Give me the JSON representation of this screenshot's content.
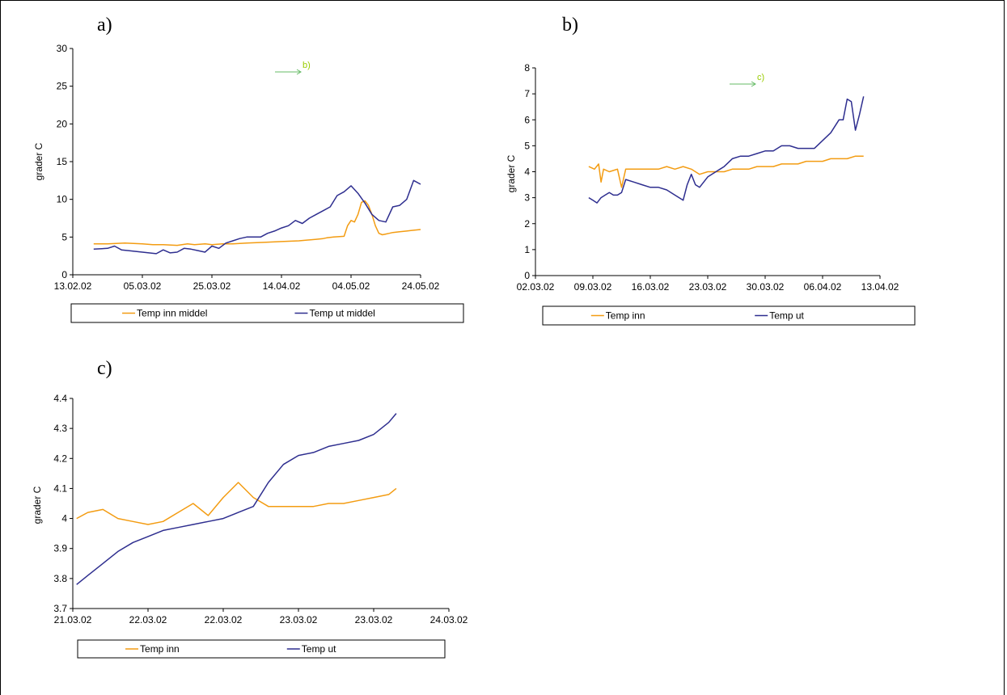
{
  "colors": {
    "inn": "#f39c12",
    "ut": "#2e2e8f",
    "arrow": "#66bb66",
    "arrow_text": "#99cc00"
  },
  "chart_data": [
    {
      "id": "a",
      "type": "line",
      "panel_label": "a)",
      "ylabel": "grader C",
      "ylim": [
        0,
        30
      ],
      "yticks": [
        "0",
        "5",
        "10",
        "15",
        "20",
        "25",
        "30"
      ],
      "xticks": [
        "13.02.02",
        "05.03.02",
        "25.03.02",
        "14.04.02",
        "04.05.02",
        "24.05.02"
      ],
      "xlim": [
        0,
        100
      ],
      "annotation": "b)",
      "series": [
        {
          "name": "Temp inn middel",
          "color_key": "inn",
          "x": [
            6,
            10,
            15,
            20,
            23,
            26,
            30,
            33,
            35,
            38,
            40,
            43,
            46,
            50,
            55,
            60,
            65,
            70,
            72,
            73,
            75,
            78,
            79,
            80,
            81,
            82,
            83,
            84,
            85,
            86,
            87,
            88,
            89,
            90,
            91,
            92,
            94,
            96,
            98,
            100
          ],
          "y": [
            4.1,
            4.1,
            4.2,
            4.1,
            4.0,
            4.0,
            3.9,
            4.1,
            4.0,
            4.1,
            4.0,
            4.1,
            4.1,
            4.2,
            4.3,
            4.4,
            4.5,
            4.7,
            4.8,
            4.9,
            5.0,
            5.1,
            6.5,
            7.2,
            7.0,
            8.0,
            9.6,
            9.8,
            9.2,
            8.0,
            6.5,
            5.5,
            5.3,
            5.4,
            5.5,
            5.6,
            5.7,
            5.8,
            5.9,
            6.0
          ]
        },
        {
          "name": "Temp ut middel",
          "color_key": "ut",
          "x": [
            6,
            10,
            12,
            14,
            16,
            20,
            24,
            26,
            28,
            30,
            32,
            34,
            36,
            38,
            40,
            42,
            44,
            46,
            48,
            50,
            52,
            54,
            56,
            58,
            60,
            62,
            64,
            66,
            68,
            70,
            72,
            74,
            76,
            78,
            80,
            82,
            84,
            86,
            88,
            90,
            92,
            94,
            96,
            98,
            100
          ],
          "y": [
            3.4,
            3.5,
            3.8,
            3.3,
            3.2,
            3.0,
            2.8,
            3.3,
            2.9,
            3.0,
            3.5,
            3.4,
            3.2,
            3.0,
            3.8,
            3.5,
            4.2,
            4.5,
            4.8,
            5.0,
            5.0,
            5.0,
            5.5,
            5.8,
            6.2,
            6.5,
            7.2,
            6.8,
            7.5,
            8.0,
            8.5,
            9.0,
            10.5,
            11.0,
            11.8,
            10.8,
            9.5,
            8.0,
            7.2,
            7.0,
            9.0,
            9.2,
            10.0,
            12.5,
            12.0
          ]
        }
      ]
    },
    {
      "id": "b",
      "type": "line",
      "panel_label": "b)",
      "ylabel": "grader C",
      "ylim": [
        0,
        8
      ],
      "yticks": [
        "0",
        "1",
        "2",
        "3",
        "4",
        "5",
        "6",
        "7",
        "8"
      ],
      "xticks": [
        "02.03.02",
        "09.03.02",
        "16.03.02",
        "23.03.02",
        "30.03.02",
        "06.04.02",
        "13.04.02"
      ],
      "xlim": [
        0,
        42
      ],
      "annotation": "c)",
      "series": [
        {
          "name": "Temp inn",
          "color_key": "inn",
          "x": [
            6.5,
            7.2,
            7.7,
            8,
            8.3,
            9,
            10,
            10.5,
            11,
            12,
            13,
            14,
            15,
            16,
            17,
            18,
            19,
            20,
            21,
            22,
            23,
            24,
            25,
            26,
            27,
            28,
            29,
            30,
            31,
            32,
            33,
            34,
            35,
            36,
            37,
            38,
            39,
            40
          ],
          "y": [
            4.2,
            4.1,
            4.3,
            3.6,
            4.1,
            4.0,
            4.1,
            3.4,
            4.1,
            4.1,
            4.1,
            4.1,
            4.1,
            4.2,
            4.1,
            4.2,
            4.1,
            3.9,
            4.0,
            4.0,
            4.0,
            4.1,
            4.1,
            4.1,
            4.2,
            4.2,
            4.2,
            4.3,
            4.3,
            4.3,
            4.4,
            4.4,
            4.4,
            4.5,
            4.5,
            4.5,
            4.6,
            4.6
          ]
        },
        {
          "name": "Temp ut",
          "color_key": "ut",
          "x": [
            6.5,
            7,
            7.5,
            8,
            8.5,
            9,
            9.5,
            10,
            10.5,
            11,
            12,
            13,
            14,
            15,
            16,
            17,
            18,
            18.5,
            19,
            19.5,
            20,
            21,
            22,
            23,
            24,
            25,
            26,
            27,
            28,
            29,
            30,
            31,
            32,
            33,
            34,
            35,
            36,
            37,
            37.5,
            38,
            38.5,
            39,
            39.5,
            40
          ],
          "y": [
            3.0,
            2.9,
            2.8,
            3.0,
            3.1,
            3.2,
            3.1,
            3.1,
            3.2,
            3.7,
            3.6,
            3.5,
            3.4,
            3.4,
            3.3,
            3.1,
            2.9,
            3.5,
            3.9,
            3.5,
            3.4,
            3.8,
            4.0,
            4.2,
            4.5,
            4.6,
            4.6,
            4.7,
            4.8,
            4.8,
            5.0,
            5.0,
            4.9,
            4.9,
            4.9,
            5.2,
            5.5,
            6.0,
            6.0,
            6.8,
            6.7,
            5.6,
            6.2,
            6.9
          ]
        }
      ]
    },
    {
      "id": "c",
      "type": "line",
      "panel_label": "c)",
      "ylabel": "grader C",
      "ylim": [
        3.7,
        4.4
      ],
      "yticks": [
        "3.7",
        "3.8",
        "3.9",
        "4",
        "4.1",
        "4.2",
        "4.3",
        "4.4"
      ],
      "xticks": [
        "21.03.02",
        "22.03.02",
        "22.03.02",
        "23.03.02",
        "23.03.02",
        "24.03.02"
      ],
      "xlim": [
        0,
        5
      ],
      "series": [
        {
          "name": "Temp inn",
          "color_key": "inn",
          "x": [
            0.05,
            0.2,
            0.4,
            0.6,
            0.8,
            1.0,
            1.2,
            1.4,
            1.6,
            1.8,
            2.0,
            2.2,
            2.4,
            2.6,
            2.8,
            3.0,
            3.2,
            3.4,
            3.6,
            3.8,
            4.0,
            4.2,
            4.3
          ],
          "y": [
            4.0,
            4.02,
            4.03,
            4.0,
            3.99,
            3.98,
            3.99,
            4.02,
            4.05,
            4.01,
            4.07,
            4.12,
            4.07,
            4.04,
            4.04,
            4.04,
            4.04,
            4.05,
            4.05,
            4.06,
            4.07,
            4.08,
            4.1
          ]
        },
        {
          "name": "Temp ut",
          "color_key": "ut",
          "x": [
            0.05,
            0.2,
            0.4,
            0.6,
            0.8,
            1.0,
            1.2,
            1.4,
            1.6,
            1.8,
            2.0,
            2.2,
            2.4,
            2.6,
            2.8,
            3.0,
            3.2,
            3.4,
            3.6,
            3.8,
            4.0,
            4.2,
            4.3
          ],
          "y": [
            3.78,
            3.81,
            3.85,
            3.89,
            3.92,
            3.94,
            3.96,
            3.97,
            3.98,
            3.99,
            4.0,
            4.02,
            4.04,
            4.12,
            4.18,
            4.21,
            4.22,
            4.24,
            4.25,
            4.26,
            4.28,
            4.32,
            4.35
          ]
        }
      ]
    }
  ]
}
